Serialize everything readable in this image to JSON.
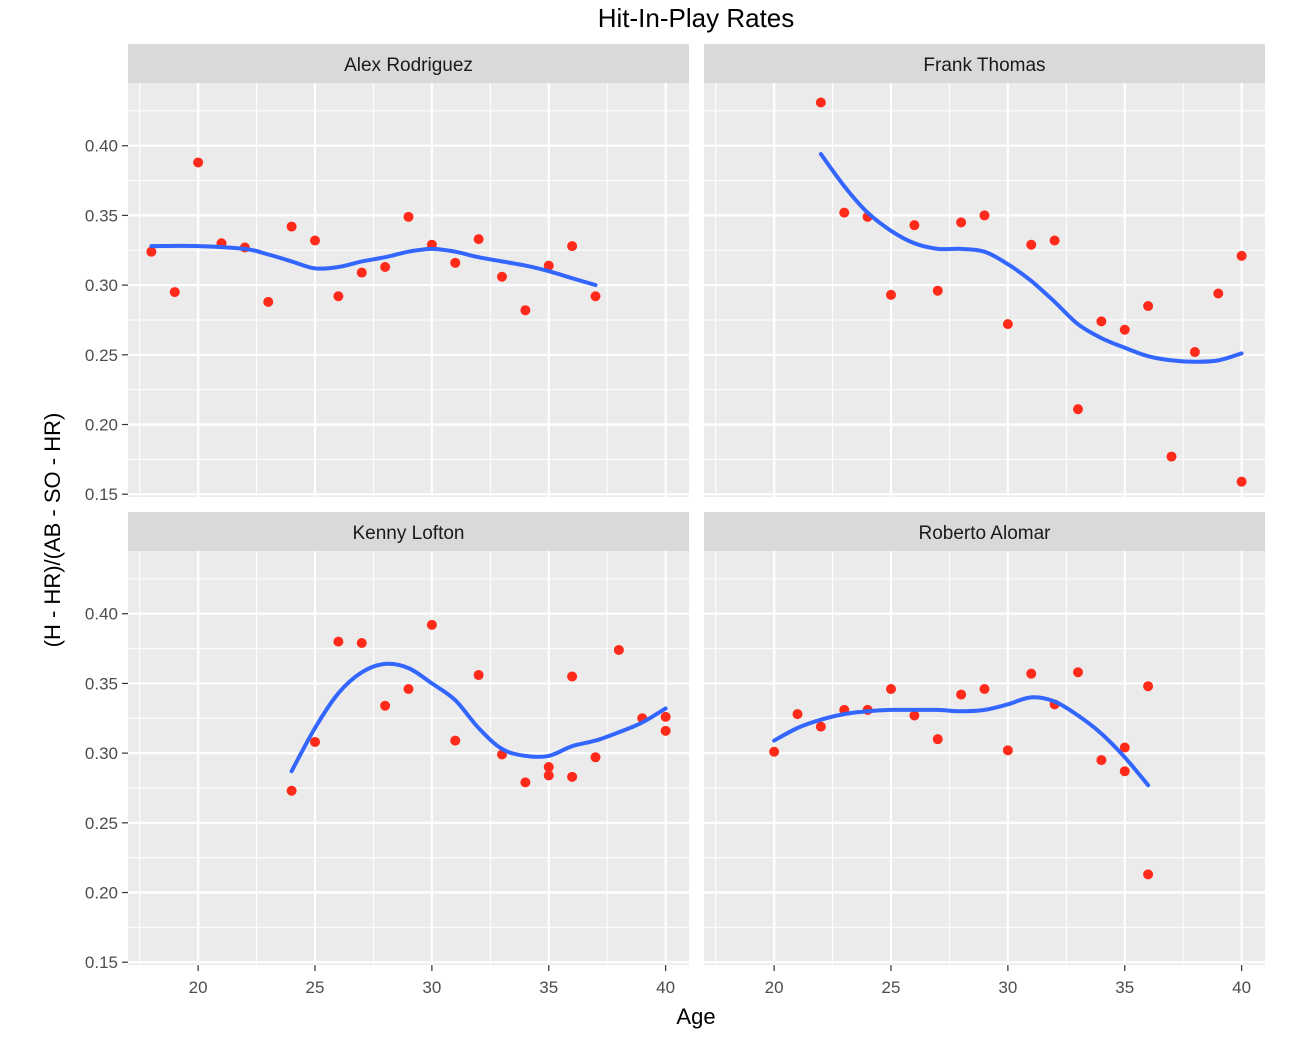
{
  "title": "Hit-In-Play Rates",
  "colors": {
    "panel_bg": "#EBEBEB",
    "strip_bg": "#D9D9D9",
    "grid": "#FFFFFF",
    "points": "#FF2A1A",
    "smooth": "#3366FF",
    "tick_text": "#4D4D4D",
    "text": "#1A1A1A"
  },
  "chart_data": {
    "type": "scatter",
    "title": "Hit-In-Play Rates",
    "xlabel": "Age",
    "ylabel": "(H - HR)/(AB - SO - HR)",
    "xlim": [
      17,
      41
    ],
    "ylim": [
      0.148,
      0.445
    ],
    "x_ticks": [
      20,
      25,
      30,
      35,
      40
    ],
    "y_ticks": [
      0.15,
      0.2,
      0.25,
      0.3,
      0.35,
      0.4
    ],
    "grid": true,
    "legend": "none",
    "facets": [
      {
        "name": "Alex Rodriguez",
        "points": [
          [
            18,
            0.324
          ],
          [
            19,
            0.295
          ],
          [
            20,
            0.388
          ],
          [
            21,
            0.33
          ],
          [
            22,
            0.327
          ],
          [
            23,
            0.288
          ],
          [
            24,
            0.342
          ],
          [
            25,
            0.332
          ],
          [
            26,
            0.292
          ],
          [
            27,
            0.309
          ],
          [
            28,
            0.313
          ],
          [
            29,
            0.349
          ],
          [
            30,
            0.329
          ],
          [
            31,
            0.316
          ],
          [
            32,
            0.333
          ],
          [
            33,
            0.306
          ],
          [
            34,
            0.282
          ],
          [
            35,
            0.314
          ],
          [
            36,
            0.328
          ],
          [
            37,
            0.292
          ]
        ],
        "smooth": [
          [
            18,
            0.328
          ],
          [
            20,
            0.328
          ],
          [
            22,
            0.326
          ],
          [
            23,
            0.322
          ],
          [
            24,
            0.317
          ],
          [
            25,
            0.312
          ],
          [
            26,
            0.313
          ],
          [
            27,
            0.317
          ],
          [
            28,
            0.32
          ],
          [
            29,
            0.324
          ],
          [
            30,
            0.326
          ],
          [
            31,
            0.324
          ],
          [
            32,
            0.32
          ],
          [
            33,
            0.317
          ],
          [
            34,
            0.314
          ],
          [
            35,
            0.31
          ],
          [
            36,
            0.305
          ],
          [
            37,
            0.3
          ]
        ]
      },
      {
        "name": "Frank Thomas",
        "points": [
          [
            22,
            0.431
          ],
          [
            23,
            0.352
          ],
          [
            24,
            0.349
          ],
          [
            25,
            0.293
          ],
          [
            26,
            0.343
          ],
          [
            27,
            0.296
          ],
          [
            28,
            0.345
          ],
          [
            29,
            0.35
          ],
          [
            30,
            0.272
          ],
          [
            31,
            0.329
          ],
          [
            32,
            0.332
          ],
          [
            33,
            0.211
          ],
          [
            34,
            0.274
          ],
          [
            35,
            0.268
          ],
          [
            36,
            0.285
          ],
          [
            37,
            0.177
          ],
          [
            38,
            0.252
          ],
          [
            39,
            0.294
          ],
          [
            40,
            0.321
          ],
          [
            40,
            0.159
          ]
        ],
        "smooth": [
          [
            22,
            0.394
          ],
          [
            23,
            0.371
          ],
          [
            24,
            0.352
          ],
          [
            25,
            0.339
          ],
          [
            26,
            0.33
          ],
          [
            27,
            0.326
          ],
          [
            28,
            0.326
          ],
          [
            29,
            0.324
          ],
          [
            30,
            0.315
          ],
          [
            31,
            0.303
          ],
          [
            32,
            0.288
          ],
          [
            33,
            0.272
          ],
          [
            34,
            0.262
          ],
          [
            35,
            0.255
          ],
          [
            36,
            0.249
          ],
          [
            37,
            0.246
          ],
          [
            38,
            0.245
          ],
          [
            39,
            0.246
          ],
          [
            40,
            0.251
          ]
        ]
      },
      {
        "name": "Kenny Lofton",
        "points": [
          [
            24,
            0.273
          ],
          [
            25,
            0.308
          ],
          [
            26,
            0.38
          ],
          [
            27,
            0.379
          ],
          [
            28,
            0.334
          ],
          [
            29,
            0.346
          ],
          [
            30,
            0.392
          ],
          [
            31,
            0.309
          ],
          [
            32,
            0.356
          ],
          [
            33,
            0.299
          ],
          [
            34,
            0.279
          ],
          [
            35,
            0.29
          ],
          [
            35,
            0.284
          ],
          [
            36,
            0.355
          ],
          [
            36,
            0.283
          ],
          [
            37,
            0.297
          ],
          [
            38,
            0.374
          ],
          [
            39,
            0.325
          ],
          [
            40,
            0.326
          ],
          [
            40,
            0.316
          ]
        ],
        "smooth": [
          [
            24,
            0.287
          ],
          [
            25,
            0.318
          ],
          [
            26,
            0.343
          ],
          [
            27,
            0.358
          ],
          [
            28,
            0.364
          ],
          [
            29,
            0.361
          ],
          [
            30,
            0.35
          ],
          [
            31,
            0.338
          ],
          [
            32,
            0.318
          ],
          [
            33,
            0.303
          ],
          [
            34,
            0.298
          ],
          [
            35,
            0.298
          ],
          [
            36,
            0.305
          ],
          [
            37,
            0.309
          ],
          [
            38,
            0.315
          ],
          [
            39,
            0.322
          ],
          [
            40,
            0.332
          ]
        ]
      },
      {
        "name": "Roberto Alomar",
        "points": [
          [
            20,
            0.301
          ],
          [
            21,
            0.328
          ],
          [
            22,
            0.319
          ],
          [
            23,
            0.331
          ],
          [
            24,
            0.331
          ],
          [
            25,
            0.346
          ],
          [
            26,
            0.327
          ],
          [
            27,
            0.31
          ],
          [
            28,
            0.342
          ],
          [
            29,
            0.346
          ],
          [
            30,
            0.302
          ],
          [
            31,
            0.357
          ],
          [
            32,
            0.335
          ],
          [
            33,
            0.358
          ],
          [
            34,
            0.295
          ],
          [
            35,
            0.304
          ],
          [
            35,
            0.287
          ],
          [
            36,
            0.348
          ],
          [
            36,
            0.213
          ]
        ],
        "smooth": [
          [
            20,
            0.309
          ],
          [
            21,
            0.318
          ],
          [
            22,
            0.324
          ],
          [
            23,
            0.328
          ],
          [
            24,
            0.33
          ],
          [
            25,
            0.331
          ],
          [
            26,
            0.331
          ],
          [
            27,
            0.331
          ],
          [
            28,
            0.33
          ],
          [
            29,
            0.331
          ],
          [
            30,
            0.335
          ],
          [
            31,
            0.34
          ],
          [
            32,
            0.337
          ],
          [
            33,
            0.327
          ],
          [
            34,
            0.314
          ],
          [
            35,
            0.297
          ],
          [
            36,
            0.277
          ]
        ]
      }
    ]
  }
}
